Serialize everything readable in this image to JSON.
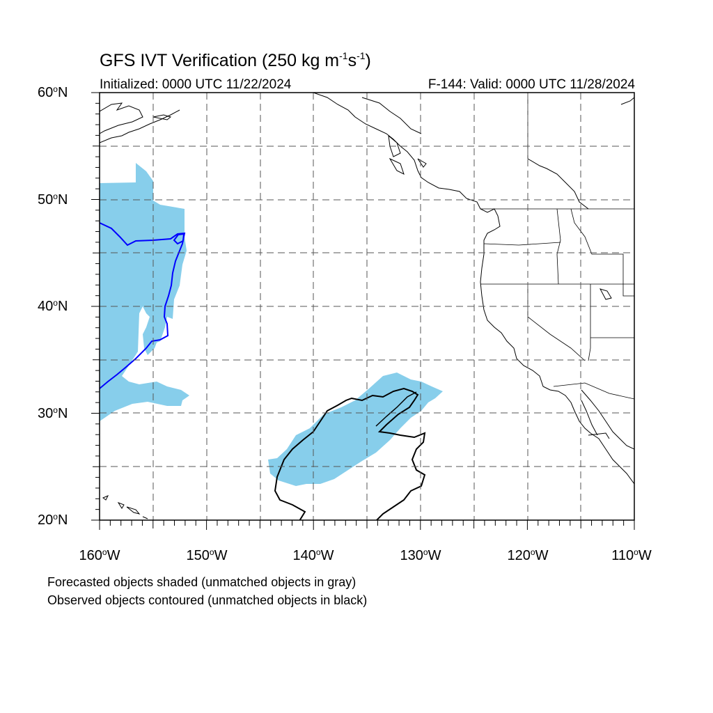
{
  "title": {
    "main": "GFS IVT Verification (250 kg m",
    "exp1": "-1",
    "mid": "s",
    "exp2": "-1",
    "end": ")"
  },
  "initialized_label": "Initialized: 0000 UTC 11/22/2024",
  "valid_label": "F-144: Valid: 0000 UTC 11/28/2024",
  "deg_symbol": "o",
  "lat_ticks": [
    {
      "value": "60",
      "hemi": "N"
    },
    {
      "value": "50",
      "hemi": "N"
    },
    {
      "value": "40",
      "hemi": "N"
    },
    {
      "value": "30",
      "hemi": "N"
    },
    {
      "value": "20",
      "hemi": "N"
    }
  ],
  "lon_ticks": [
    {
      "value": "160",
      "hemi": "W"
    },
    {
      "value": "150",
      "hemi": "W"
    },
    {
      "value": "140",
      "hemi": "W"
    },
    {
      "value": "130",
      "hemi": "W"
    },
    {
      "value": "120",
      "hemi": "W"
    },
    {
      "value": "110",
      "hemi": "W"
    }
  ],
  "notes": [
    "Forecasted objects shaded (unmatched objects in gray)",
    "Observed objects contoured (unmatched objects in black)"
  ],
  "colors": {
    "forecast_fill": "#87ceeb",
    "matched_contour": "#0000ff",
    "unmatched_contour": "#000000",
    "grid": "#555555",
    "coastline": "#000000"
  },
  "map": {
    "lon_range": [
      -160,
      -110
    ],
    "lat_range": [
      20,
      60
    ],
    "grid_lines": "dashed, every 5 degrees"
  }
}
